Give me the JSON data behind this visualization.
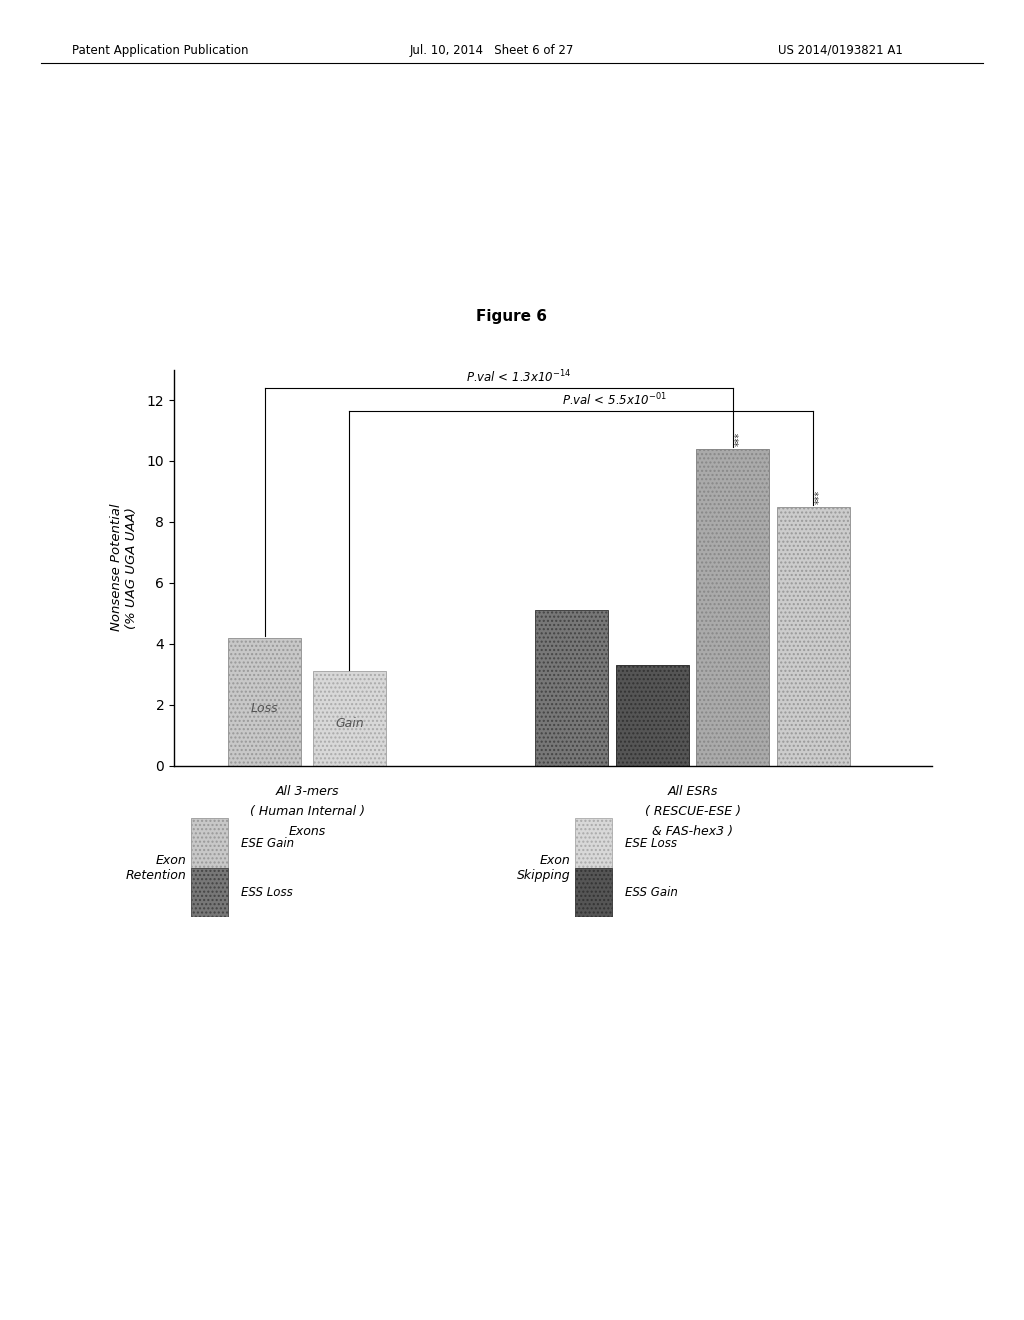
{
  "figure_title": "Figure 6",
  "g1_values": [
    4.2,
    3.1
  ],
  "g2_values": [
    5.1,
    3.3,
    10.4,
    8.5
  ],
  "g1_text": [
    "Loss",
    "Gain"
  ],
  "g1_colors": [
    "#c8c8c8",
    "#d8d8d8"
  ],
  "g1_edgecolors": [
    "#999999",
    "#aaaaaa"
  ],
  "g2_colors": [
    "#777777",
    "#555555",
    "#aaaaaa",
    "#cccccc"
  ],
  "g2_edgecolors": [
    "#444444",
    "#333333",
    "#888888",
    "#999999"
  ],
  "ylabel_line1": "Nonsense Potential",
  "ylabel_line2": "(% UAG UGA UAA)",
  "ylim": [
    0,
    13
  ],
  "yticks": [
    0,
    2,
    4,
    6,
    8,
    10,
    12
  ],
  "group1_label_line1": "All 3-mers",
  "group1_label_line2": "( Human Internal )",
  "group1_label_line3": "Exons",
  "group2_label_line1": "All ESRs",
  "group2_label_line2": "( RESCUE-ESE )",
  "group2_label_line3": "& FAS-hex3 )",
  "pval1_text": "P.val < 1.3x10",
  "pval1_exp": "-14",
  "pval2_text": "P.val < 5.5x10",
  "pval2_exp": "-01",
  "star_text": "***",
  "header_left": "Patent Application Publication",
  "header_mid": "Jul. 10, 2014   Sheet 6 of 27",
  "header_right": "US 2014/0193821 A1",
  "bar_width": 0.55,
  "background_color": "#ffffff"
}
